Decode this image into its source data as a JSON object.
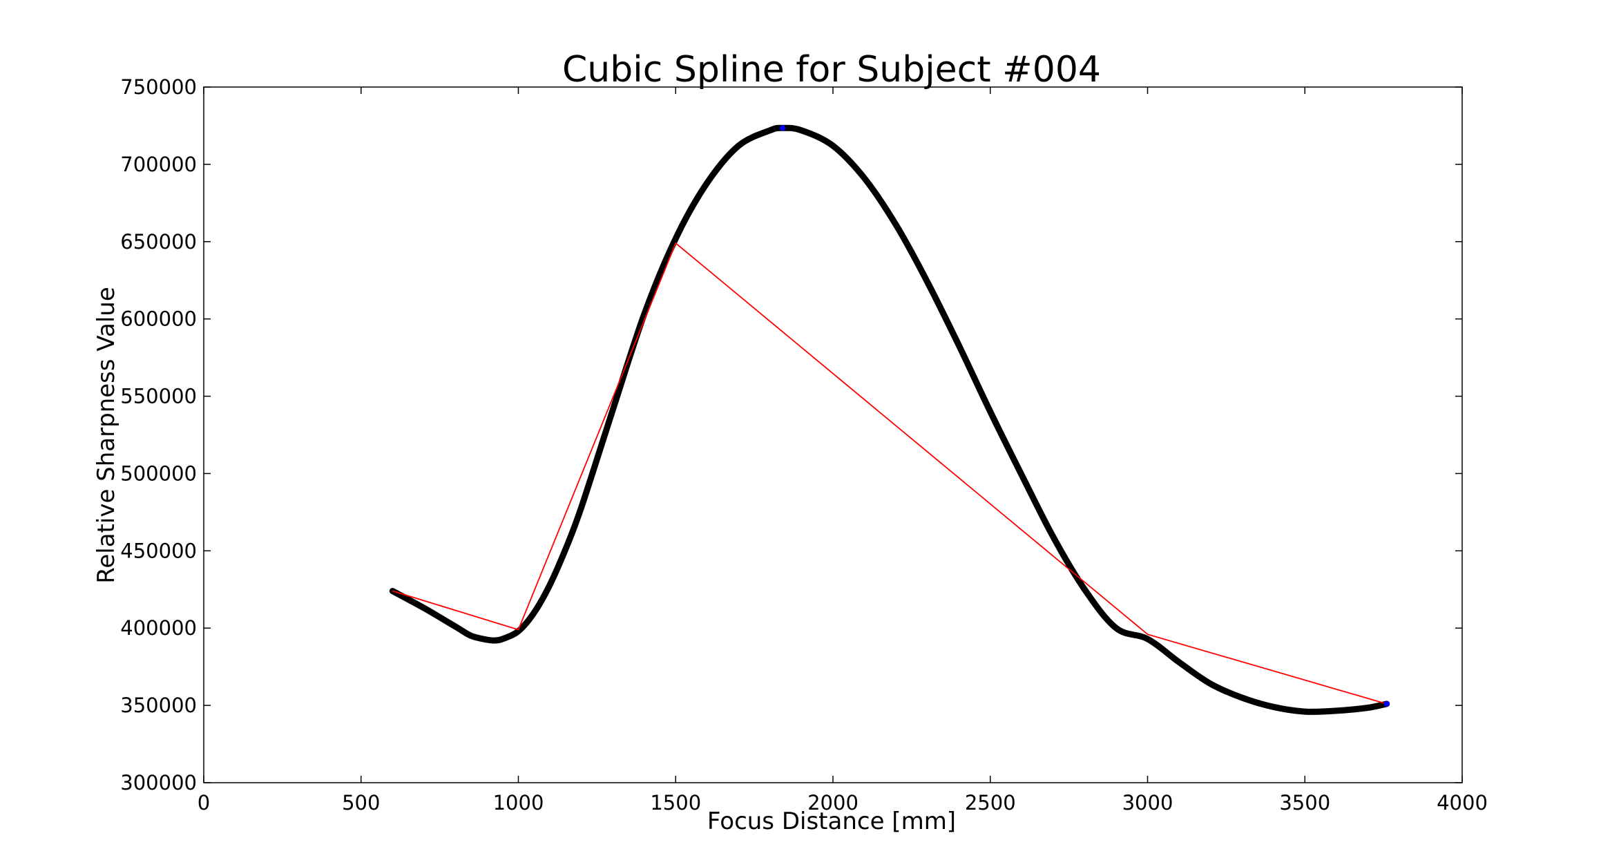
{
  "chart_data": {
    "type": "line",
    "title": "Cubic Spline for Subject #004",
    "xlabel": "Focus Distance [mm]",
    "ylabel": "Relative Sharpness Value",
    "xlim": [
      0,
      4000
    ],
    "ylim": [
      300000,
      750000
    ],
    "xticks": [
      0,
      500,
      1000,
      1500,
      2000,
      2500,
      3000,
      3500,
      4000
    ],
    "xtick_labels": [
      "0",
      "500",
      "1000",
      "1500",
      "2000",
      "2500",
      "3000",
      "3500",
      "4000"
    ],
    "yticks": [
      300000,
      350000,
      400000,
      450000,
      500000,
      550000,
      600000,
      650000,
      700000,
      750000
    ],
    "ytick_labels": [
      "300000",
      "350000",
      "400000",
      "450000",
      "500000",
      "550000",
      "600000",
      "650000",
      "700000",
      "750000"
    ],
    "grid": false,
    "legend": "none",
    "series": [
      {
        "style": "spline",
        "color": "#000000",
        "x": [
          600,
          700,
          800,
          850,
          900,
          925,
          950,
          1000,
          1050,
          1100,
          1150,
          1200,
          1300,
          1400,
          1500,
          1600,
          1700,
          1800,
          1840,
          1900,
          2000,
          2100,
          2200,
          2300,
          2400,
          2500,
          2600,
          2700,
          2800,
          2900,
          3000,
          3100,
          3200,
          3300,
          3400,
          3500,
          3600,
          3700,
          3760
        ],
        "y": [
          424000,
          413000,
          401000,
          395000,
          392500,
          392000,
          393000,
          398000,
          410000,
          428000,
          451000,
          478000,
          541000,
          603000,
          652000,
          688000,
          712000,
          722000,
          723500,
          722000,
          712000,
          691000,
          661000,
          624000,
          583000,
          540000,
          499000,
          459000,
          425000,
          400000,
          393000,
          378000,
          364000,
          355000,
          349000,
          346000,
          346500,
          348500,
          351000
        ]
      },
      {
        "style": "straight",
        "color": "#ff0000",
        "x": [
          600,
          1000,
          1500,
          3000,
          3760
        ],
        "y": [
          424000,
          399000,
          649000,
          396000,
          351000
        ]
      }
    ],
    "markers": [
      {
        "x": 1840,
        "y": 723500,
        "color": "#0000ff"
      },
      {
        "x": 3760,
        "y": 351000,
        "color": "#0000ff"
      }
    ]
  }
}
